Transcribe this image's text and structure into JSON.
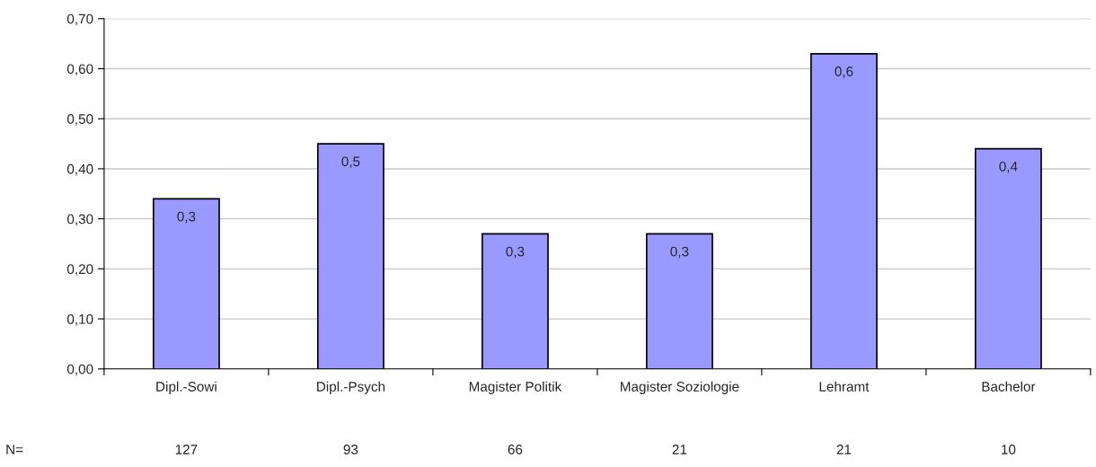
{
  "chart_data": {
    "type": "bar",
    "categories": [
      "Dipl.-Sowi",
      "Dipl.-Psych",
      "Magister Politik",
      "Magister Soziologie",
      "Lehramt",
      "Bachelor"
    ],
    "values": [
      0.34,
      0.45,
      0.27,
      0.27,
      0.63,
      0.44
    ],
    "value_labels": [
      "0,3",
      "0,5",
      "0,3",
      "0,3",
      "0,6",
      "0,4"
    ],
    "color": "#9999ff",
    "ylim": [
      0,
      0.7
    ],
    "yticks": [
      {
        "value": 0,
        "label": "0,00"
      },
      {
        "value": 0.1,
        "label": "0,10"
      },
      {
        "value": 0.2,
        "label": "0,20"
      },
      {
        "value": 0.3,
        "label": "0,30"
      },
      {
        "value": 0.4,
        "label": "0,40"
      },
      {
        "value": 0.5,
        "label": "0,50"
      },
      {
        "value": 0.6,
        "label": "0,60"
      },
      {
        "value": 0.7,
        "label": "0,70"
      }
    ],
    "grid": "y",
    "annotations": [
      "N=",
      "127",
      "93",
      "66",
      "21",
      "21",
      "10"
    ]
  }
}
